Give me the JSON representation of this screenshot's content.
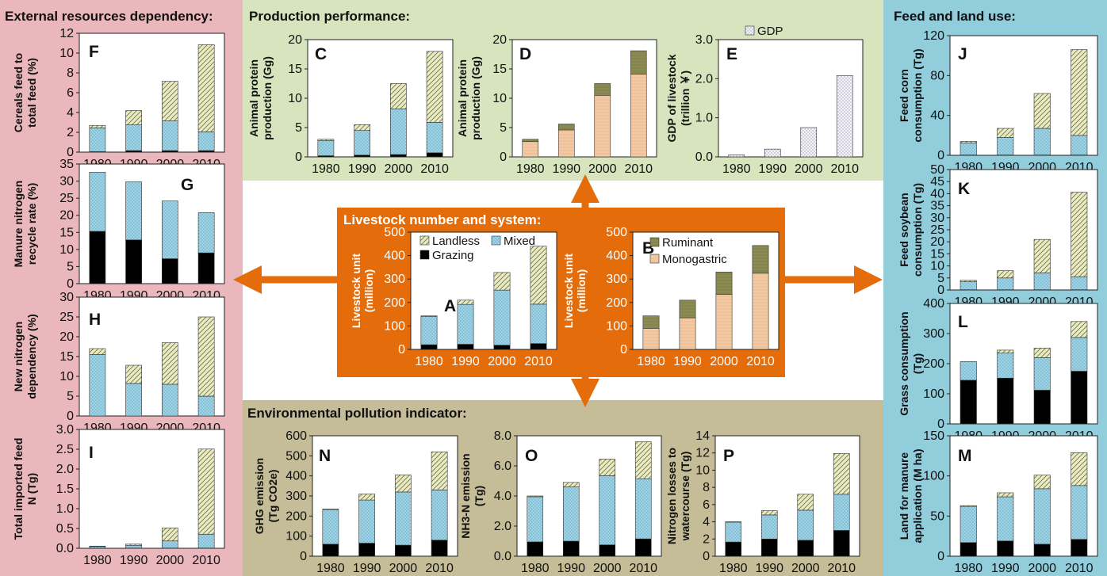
{
  "colors": {
    "pink_bg": "#E9B7BC",
    "green_bg": "#D7E4BD",
    "blue_bg": "#92CDDC",
    "khaki_bg": "#C4BD97",
    "orange": "#E46C0A",
    "mixed": "#9DD3E6",
    "landless": "#EAEBC2",
    "grazing": "#000000",
    "monogastric": "#F2C9A2",
    "ruminant": "#8A8A52",
    "gdp": "#E4E4EE"
  },
  "sections": {
    "external": "External resources dependency:",
    "production": "Production performance:",
    "feed": "Feed and land use:",
    "livestock": "Livestock number and system:",
    "environment": "Environmental pollution indicator:"
  },
  "chart_data": [
    {
      "id": "A",
      "type": "bar",
      "stacked": true,
      "categories": [
        "1980",
        "1990",
        "2000",
        "2010"
      ],
      "ylabel": "Livestock unit (million)",
      "ylim": [
        0,
        500
      ],
      "yticks": [
        "0",
        "100",
        "200",
        "300",
        "400",
        "500"
      ],
      "series": [
        {
          "name": "Grazing",
          "key": "grazing",
          "values": [
            20,
            22,
            18,
            25
          ]
        },
        {
          "name": "Mixed",
          "key": "mixed",
          "values": [
            120,
            170,
            235,
            168
          ]
        },
        {
          "name": "Landless",
          "key": "landless",
          "values": [
            3,
            18,
            75,
            247
          ]
        }
      ],
      "legend": [
        "Landless",
        "Mixed",
        "Grazing"
      ]
    },
    {
      "id": "B",
      "type": "bar",
      "stacked": true,
      "categories": [
        "1980",
        "1990",
        "2000",
        "2010"
      ],
      "ylabel": "Livestock unit (million)",
      "ylim": [
        0,
        500
      ],
      "yticks": [
        "0",
        "100",
        "200",
        "300",
        "400",
        "500"
      ],
      "series": [
        {
          "name": "Monogastric",
          "key": "monogastric",
          "values": [
            90,
            135,
            235,
            325
          ]
        },
        {
          "name": "Ruminant",
          "key": "ruminant",
          "values": [
            53,
            75,
            95,
            118
          ]
        }
      ],
      "legend": [
        "Ruminant",
        "Monogastric"
      ]
    },
    {
      "id": "C",
      "type": "bar",
      "stacked": true,
      "categories": [
        "1980",
        "1990",
        "2000",
        "2010"
      ],
      "ylabel": "Animal protein production (Gg)",
      "ylim": [
        0,
        20
      ],
      "yticks": [
        "0",
        "5",
        "10",
        "15",
        "20"
      ],
      "series": [
        {
          "key": "grazing",
          "values": [
            0.2,
            0.3,
            0.4,
            0.7
          ]
        },
        {
          "key": "mixed",
          "values": [
            2.6,
            4.2,
            7.8,
            5.2
          ]
        },
        {
          "key": "landless",
          "values": [
            0.2,
            1.0,
            4.3,
            12.1
          ]
        }
      ]
    },
    {
      "id": "D",
      "type": "bar",
      "stacked": true,
      "categories": [
        "1980",
        "1990",
        "2000",
        "2010"
      ],
      "ylabel": "Animal protein production (Gg)",
      "ylim": [
        0,
        20
      ],
      "yticks": [
        "0",
        "5",
        "10",
        "15",
        "20"
      ],
      "series": [
        {
          "key": "monogastric",
          "values": [
            2.6,
            4.6,
            10.5,
            14.1
          ]
        },
        {
          "key": "ruminant",
          "values": [
            0.4,
            1.0,
            2.0,
            4.0
          ]
        }
      ]
    },
    {
      "id": "E",
      "type": "bar",
      "stacked": true,
      "categories": [
        "1980",
        "1990",
        "2000",
        "2010"
      ],
      "ylabel": "GDP of livestock (trillion ￥)",
      "ylim": [
        0,
        3
      ],
      "yticks": [
        "0.0",
        "1.0",
        "2.0",
        "3.0"
      ],
      "series": [
        {
          "name": "GDP",
          "key": "gdp",
          "values": [
            0.05,
            0.2,
            0.75,
            2.08
          ]
        }
      ],
      "legend": [
        "GDP"
      ]
    },
    {
      "id": "F",
      "type": "bar",
      "stacked": true,
      "categories": [
        "1980",
        "1990",
        "2000",
        "2010"
      ],
      "ylabel": "Cereals feed to total feed (%)",
      "ylim": [
        0,
        12
      ],
      "yticks": [
        "0",
        "2",
        "4",
        "6",
        "8",
        "10",
        "12"
      ],
      "series": [
        {
          "key": "grazing",
          "values": [
            0.05,
            0.15,
            0.15,
            0.15
          ]
        },
        {
          "key": "mixed",
          "values": [
            2.4,
            2.6,
            3.0,
            1.9
          ]
        },
        {
          "key": "landless",
          "values": [
            0.25,
            1.45,
            4.0,
            8.8
          ]
        }
      ]
    },
    {
      "id": "G",
      "type": "bar",
      "stacked": true,
      "categories": [
        "1980",
        "1990",
        "2000",
        "2010"
      ],
      "ylabel": "Manure nitrogen recycle rate (%)",
      "ylim": [
        0,
        35
      ],
      "yticks": [
        "0",
        "5",
        "10",
        "15",
        "20",
        "25",
        "30",
        "35"
      ],
      "series": [
        {
          "key": "grazing",
          "values": [
            15.3,
            12.8,
            7.3,
            9.0
          ]
        },
        {
          "key": "mixed",
          "values": [
            17.3,
            17.0,
            16.9,
            11.8
          ]
        }
      ]
    },
    {
      "id": "H",
      "type": "bar",
      "stacked": true,
      "categories": [
        "1980",
        "1990",
        "2000",
        "2010"
      ],
      "ylabel": "New nitrogen dependency (%)",
      "ylim": [
        0,
        30
      ],
      "yticks": [
        "0",
        "5",
        "10",
        "15",
        "20",
        "25",
        "30"
      ],
      "series": [
        {
          "key": "mixed",
          "values": [
            15.5,
            8.2,
            8.0,
            5.0
          ]
        },
        {
          "key": "landless",
          "values": [
            1.5,
            4.6,
            10.5,
            20.0
          ]
        }
      ]
    },
    {
      "id": "I",
      "type": "bar",
      "stacked": true,
      "categories": [
        "1980",
        "1990",
        "2000",
        "2010"
      ],
      "ylabel": "Total imported feed N (Tg)",
      "ylim": [
        0,
        3
      ],
      "yticks": [
        "0.0",
        "0.5",
        "1.0",
        "1.5",
        "2.0",
        "2.5",
        "3.0"
      ],
      "series": [
        {
          "key": "grazing",
          "values": [
            0.005,
            0.005,
            0.005,
            0.005
          ]
        },
        {
          "key": "mixed",
          "values": [
            0.04,
            0.07,
            0.18,
            0.35
          ]
        },
        {
          "key": "landless",
          "values": [
            0.01,
            0.03,
            0.33,
            2.15
          ]
        }
      ]
    },
    {
      "id": "J",
      "type": "bar",
      "stacked": true,
      "categories": [
        "1980",
        "1990",
        "2000",
        "2010"
      ],
      "ylabel": "Feed corn consumption (Tg)",
      "ylim": [
        0,
        120
      ],
      "yticks": [
        "0",
        "40",
        "80",
        "120"
      ],
      "series": [
        {
          "key": "grazing",
          "values": [
            0.3,
            0.3,
            0.3,
            0.3
          ]
        },
        {
          "key": "mixed",
          "values": [
            12.2,
            17.7,
            26.7,
            19.7
          ]
        },
        {
          "key": "landless",
          "values": [
            1.5,
            9.0,
            35.0,
            86.0
          ]
        }
      ]
    },
    {
      "id": "K",
      "type": "bar",
      "stacked": true,
      "categories": [
        "1980",
        "1990",
        "2000",
        "2010"
      ],
      "ylabel": "Feed soybean consumption (Tg)",
      "ylim": [
        0,
        50
      ],
      "yticks": [
        "0",
        "5",
        "10",
        "15",
        "20",
        "25",
        "30",
        "35",
        "40",
        "45",
        "50"
      ],
      "series": [
        {
          "key": "grazing",
          "values": [
            0.1,
            0.1,
            0.1,
            0.1
          ]
        },
        {
          "key": "mixed",
          "values": [
            3.3,
            4.9,
            7.0,
            5.4
          ]
        },
        {
          "key": "landless",
          "values": [
            0.6,
            3.0,
            13.9,
            35.1
          ]
        }
      ]
    },
    {
      "id": "L",
      "type": "bar",
      "stacked": true,
      "categories": [
        "1980",
        "1990",
        "2000",
        "2010"
      ],
      "ylabel": "Grass consumption (Tg)",
      "ylim": [
        0,
        400
      ],
      "yticks": [
        "0",
        "100",
        "200",
        "300",
        "400"
      ],
      "series": [
        {
          "key": "grazing",
          "values": [
            145,
            152,
            112,
            175
          ]
        },
        {
          "key": "mixed",
          "values": [
            62,
            83,
            108,
            112
          ]
        },
        {
          "key": "landless",
          "values": [
            0,
            10,
            32,
            53
          ]
        }
      ]
    },
    {
      "id": "M",
      "type": "bar",
      "stacked": true,
      "categories": [
        "1980",
        "1990",
        "2000",
        "2010"
      ],
      "ylabel": "Land for manure application (M ha)",
      "ylim": [
        0,
        150
      ],
      "yticks": [
        "0",
        "50",
        "100",
        "150"
      ],
      "series": [
        {
          "key": "grazing",
          "values": [
            17,
            19,
            15,
            21
          ]
        },
        {
          "key": "mixed",
          "values": [
            45,
            55,
            69,
            67
          ]
        },
        {
          "key": "landless",
          "values": [
            1,
            5,
            17,
            41
          ]
        }
      ]
    },
    {
      "id": "N",
      "type": "bar",
      "stacked": true,
      "categories": [
        "1980",
        "1990",
        "2000",
        "2010"
      ],
      "ylabel": "GHG emission (Tg CO2e)",
      "ylim": [
        0,
        600
      ],
      "yticks": [
        "0",
        "100",
        "200",
        "300",
        "400",
        "500",
        "600"
      ],
      "series": [
        {
          "key": "grazing",
          "values": [
            60,
            65,
            55,
            80
          ]
        },
        {
          "key": "mixed",
          "values": [
            172,
            215,
            265,
            250
          ]
        },
        {
          "key": "landless",
          "values": [
            3,
            30,
            85,
            190
          ]
        }
      ]
    },
    {
      "id": "O",
      "type": "bar",
      "stacked": true,
      "categories": [
        "1980",
        "1990",
        "2000",
        "2010"
      ],
      "ylabel": "NH3-N emission (Tg)",
      "ylim": [
        0,
        8
      ],
      "yticks": [
        "0.0",
        "2.0",
        "4.0",
        "6.0",
        "8.0"
      ],
      "series": [
        {
          "key": "grazing",
          "values": [
            0.95,
            1.0,
            0.75,
            1.15
          ]
        },
        {
          "key": "mixed",
          "values": [
            3.0,
            3.6,
            4.6,
            4.0
          ]
        },
        {
          "key": "landless",
          "values": [
            0.05,
            0.3,
            1.1,
            2.45
          ]
        }
      ]
    },
    {
      "id": "P",
      "type": "bar",
      "stacked": true,
      "categories": [
        "1980",
        "1990",
        "2000",
        "2010"
      ],
      "ylabel": "Nitrogen losses to watercourse (Tg)",
      "ylim": [
        0,
        14
      ],
      "yticks": [
        "0",
        "2",
        "4",
        "6",
        "8",
        "10",
        "12",
        "14"
      ],
      "series": [
        {
          "key": "grazing",
          "values": [
            1.65,
            2.0,
            1.85,
            3.0
          ]
        },
        {
          "key": "mixed",
          "values": [
            2.3,
            2.8,
            3.5,
            4.2
          ]
        },
        {
          "key": "landless",
          "values": [
            0.05,
            0.5,
            1.85,
            4.75
          ]
        }
      ]
    }
  ]
}
